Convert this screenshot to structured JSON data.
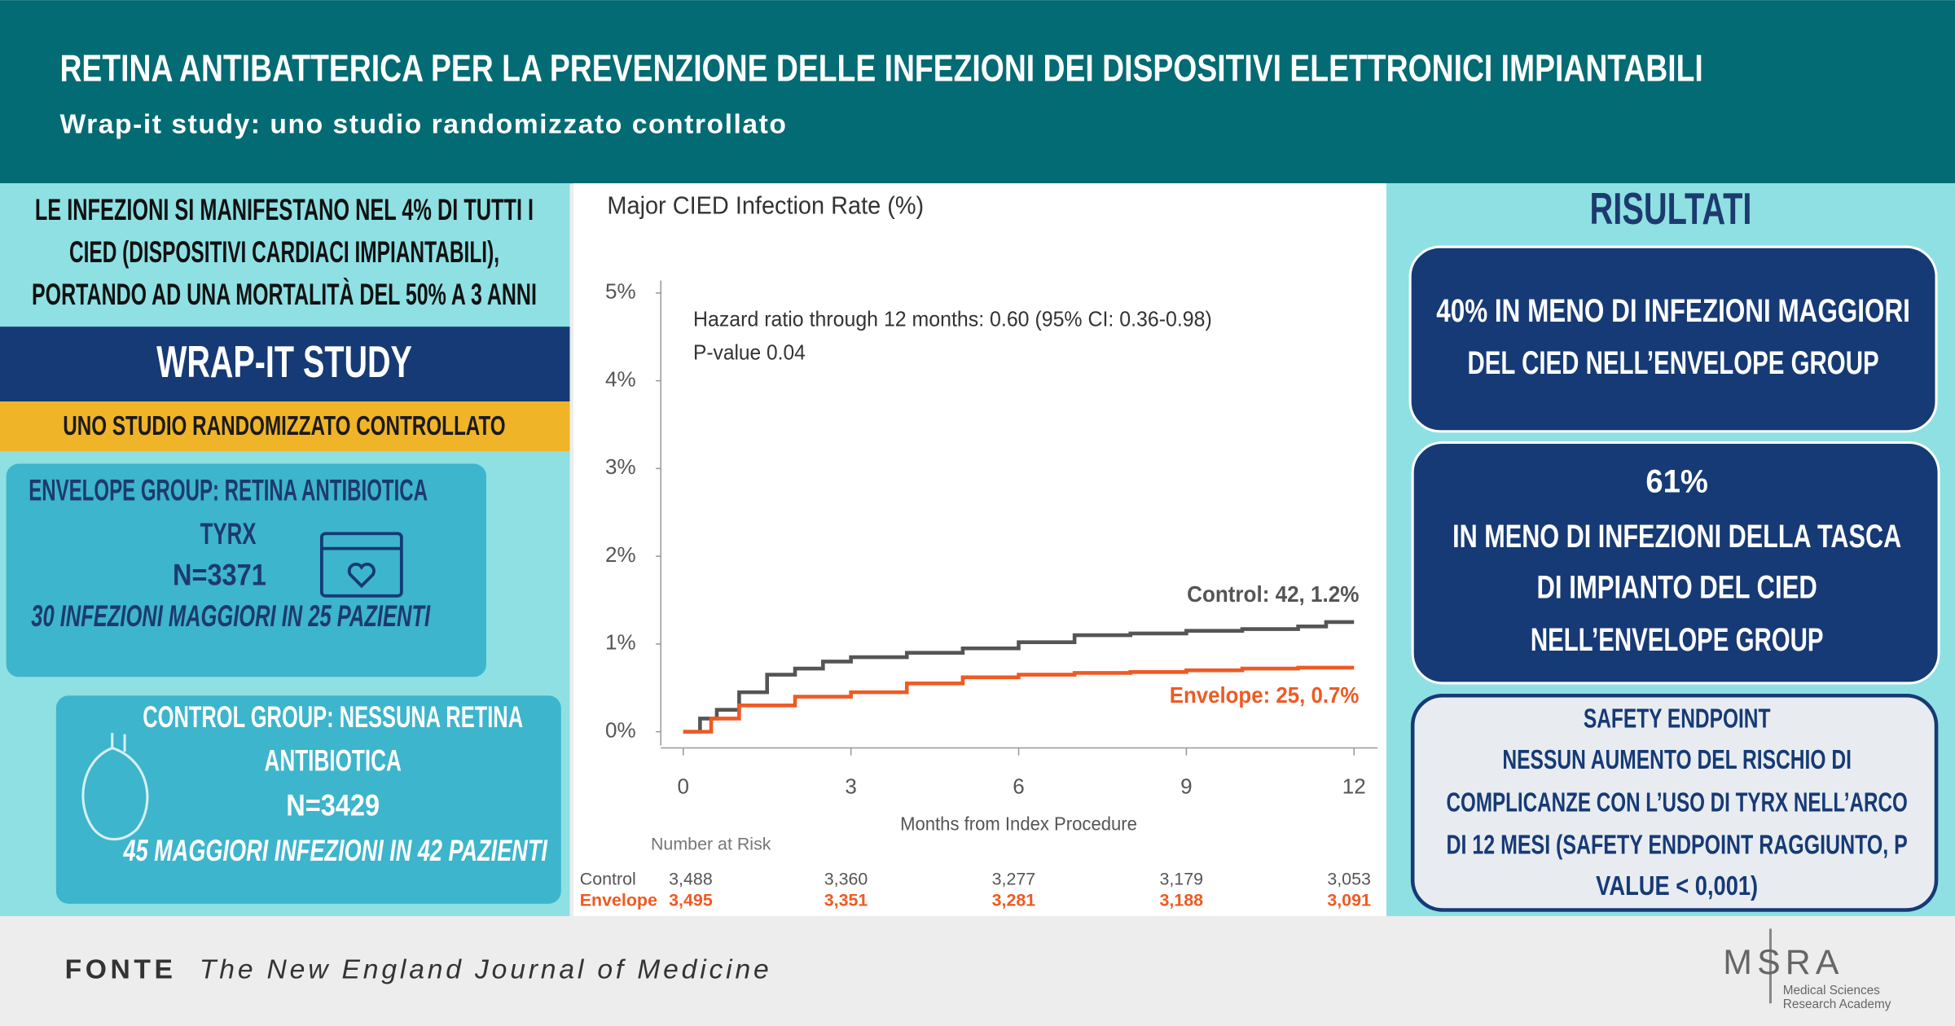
{
  "header": {
    "title": "RETINA ANTIBATTERICA PER LA PREVENZIONE DELLE INFEZIONI DEI DISPOSITIVI ELETTRONICI IMPIANTABILI",
    "subtitle": "Wrap-it study: uno studio randomizzato controllato"
  },
  "left": {
    "intro": [
      "LE INFEZIONI SI MANIFESTANO NEL 4% DI TUTTI I",
      "CIED (DISPOSITIVI CARDIACI IMPIANTABILI),",
      "PORTANDO AD UNA MORTALITÀ DEL 50% A 3 ANNI"
    ],
    "study_title": "WRAP-IT STUDY",
    "study_subtitle": "UNO STUDIO RANDOMIZZATO CONTROLLATO",
    "envelope": [
      "ENVELOPE GROUP: RETINA ANTIBIOTICA",
      "TYRX",
      "N=3371",
      "30 INFEZIONI MAGGIORI IN 25 PAZIENTI"
    ],
    "control": [
      "CONTROL GROUP: NESSUNA RETINA",
      "ANTIBIOTICA",
      "N=3429",
      "45 MAGGIORI INFEZIONI IN 42 PAZIENTI"
    ]
  },
  "chart": {
    "type": "line",
    "title": "Major CIED Infection Rate (%)",
    "annotations": [
      "Hazard ratio through 12 months: 0.60 (95% CI: 0.36-0.98)",
      "P-value 0.04"
    ],
    "xlabel": "Months from Index Procedure",
    "xlim": [
      0,
      12
    ],
    "xticks": [
      0,
      3,
      6,
      9,
      12
    ],
    "ylim": [
      0,
      5
    ],
    "yticks": [
      {
        "value": 0,
        "label": "0%"
      },
      {
        "value": 1,
        "label": "1%"
      },
      {
        "value": 2,
        "label": "2%"
      },
      {
        "value": 3,
        "label": "3%"
      },
      {
        "value": 4,
        "label": "4%"
      },
      {
        "value": 5,
        "label": "5%"
      }
    ],
    "series": [
      {
        "name": "Control",
        "color": "#555555",
        "x": [
          0,
          0.3,
          0.6,
          1,
          1.5,
          2,
          2.5,
          3,
          4,
          5,
          6,
          7,
          8,
          9,
          10,
          11,
          11.5,
          12
        ],
        "values": [
          0,
          0.15,
          0.25,
          0.45,
          0.65,
          0.72,
          0.8,
          0.85,
          0.9,
          0.95,
          1.02,
          1.1,
          1.12,
          1.15,
          1.17,
          1.2,
          1.25,
          1.25
        ]
      },
      {
        "name": "Envelope",
        "color": "#ef5a24",
        "x": [
          0,
          0.5,
          1,
          2,
          3,
          4,
          5,
          6,
          7,
          8,
          9,
          10,
          11,
          12
        ],
        "values": [
          0,
          0.15,
          0.3,
          0.4,
          0.45,
          0.55,
          0.62,
          0.65,
          0.67,
          0.68,
          0.7,
          0.72,
          0.73,
          0.73
        ]
      }
    ],
    "end_labels": [
      "Control: 42, 1.2%",
      "Envelope: 25, 0.7%"
    ],
    "risk": {
      "title": "Number at Risk",
      "rows": [
        {
          "name": "Control",
          "values": [
            "3,488",
            "3,360",
            "3,277",
            "3,179",
            "3,053"
          ]
        },
        {
          "name": "Envelope",
          "values": [
            "3,495",
            "3,351",
            "3,281",
            "3,188",
            "3,091"
          ]
        }
      ]
    }
  },
  "right": {
    "title": "RISULTATI",
    "boxes": [
      [
        "40% IN MENO DI INFEZIONI MAGGIORI",
        "DEL CIED NELL’ENVELOPE GROUP"
      ],
      [
        "61%",
        "IN MENO DI INFEZIONI DELLA TASCA",
        "DI IMPIANTO DEL CIED",
        "NELL’ENVELOPE GROUP"
      ]
    ],
    "safety": [
      "SAFETY ENDPOINT",
      "NESSUN AUMENTO DEL RISCHIO DI",
      "COMPLICANZE CON L’USO DI TYRX NELL’ARCO",
      "DI 12 MESI (SAFETY ENDPOINT RAGGIUNTO, P",
      "VALUE < 0,001)"
    ]
  },
  "footer": {
    "source_label": "FONTE",
    "source": "The New England Journal of Medicine",
    "logo": {
      "name": "MSRA",
      "sub": [
        "Medical Sciences",
        "Research Academy"
      ]
    }
  }
}
